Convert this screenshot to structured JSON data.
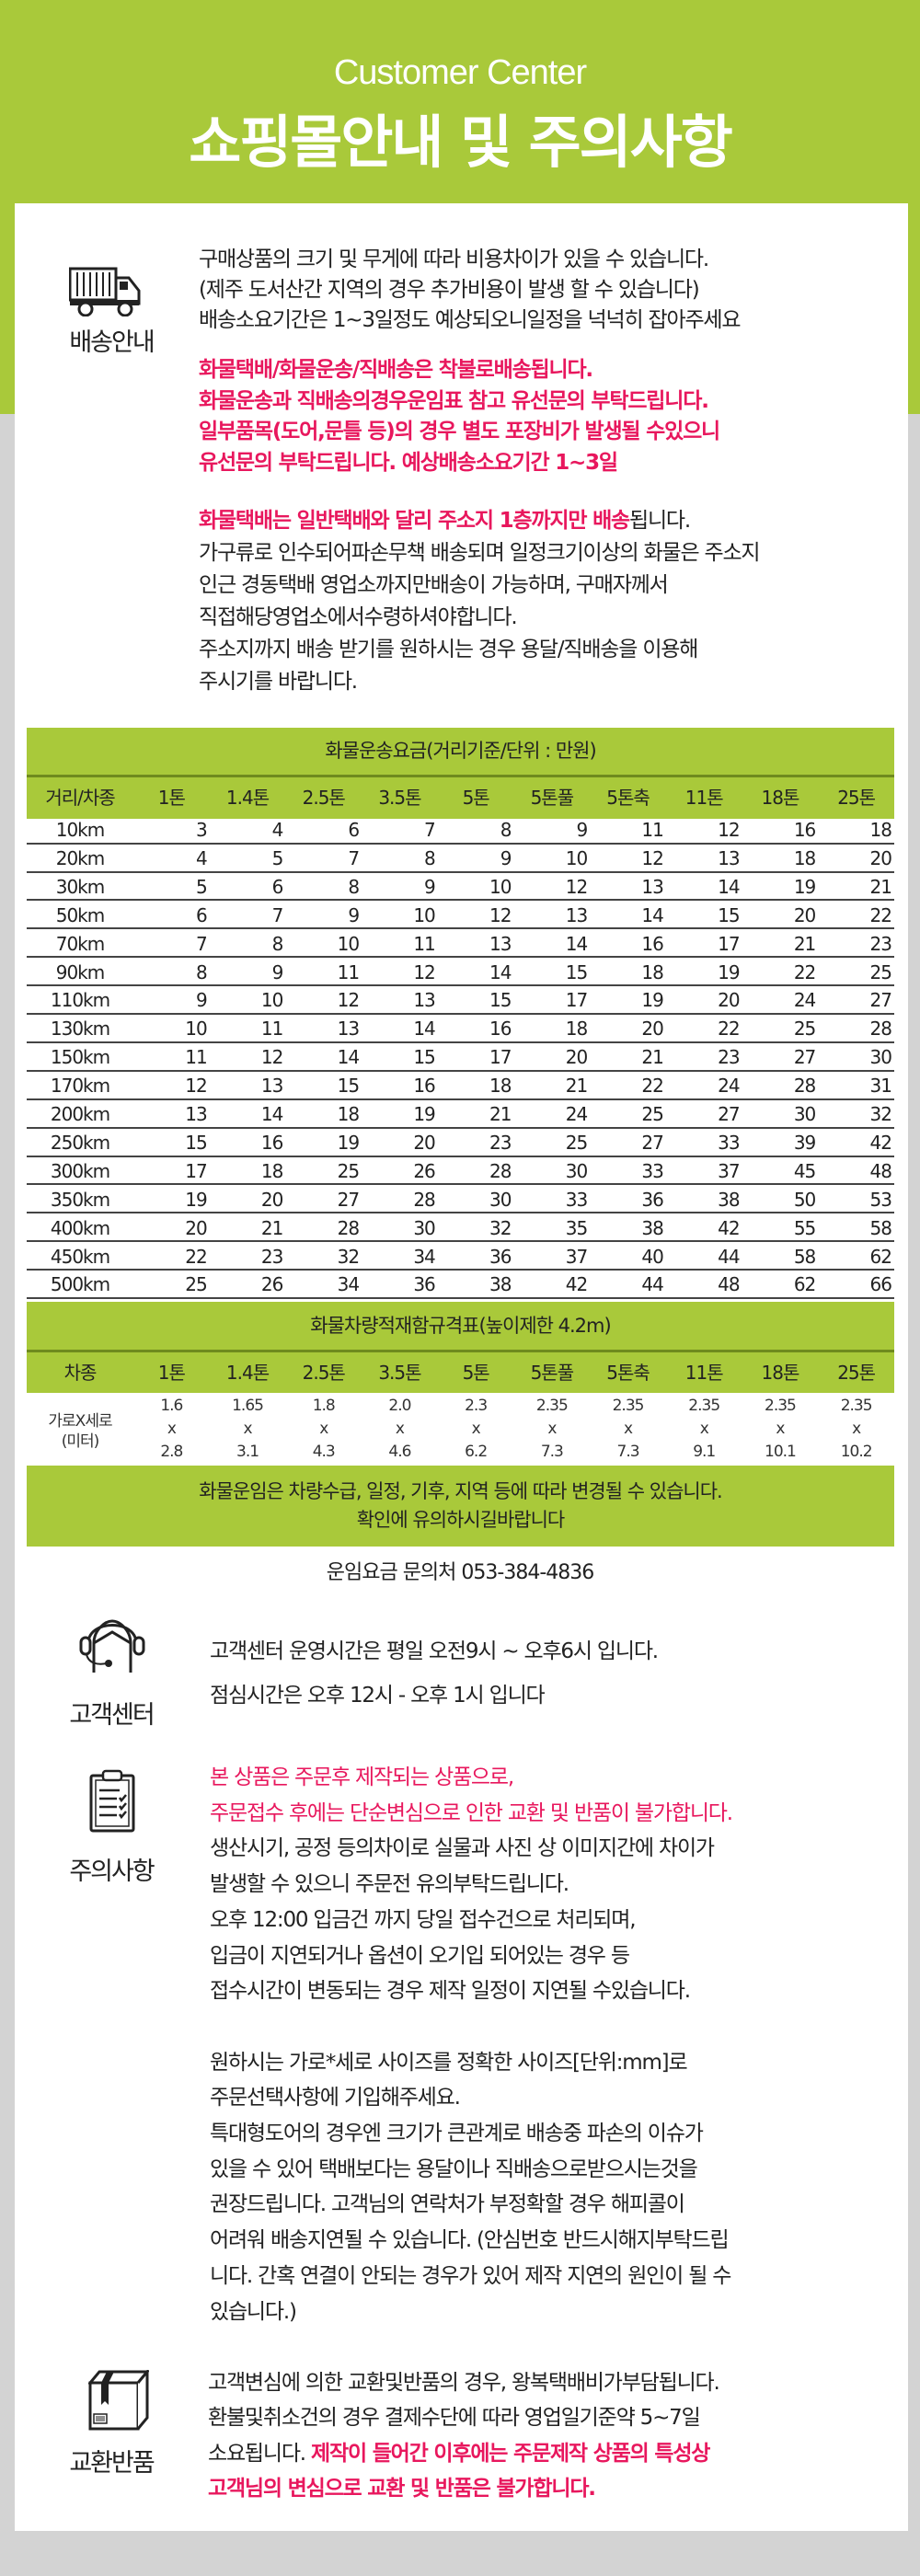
{
  "header": {
    "subtitle": "Customer Center",
    "title": "쇼핑몰안내 및 주의사항"
  },
  "colors": {
    "accent_green": "#a9c93a",
    "warning_red": "#e8175d",
    "page_grey": "#d3d3d3"
  },
  "shipping": {
    "icon": "truck-icon",
    "label": "배송안내",
    "lines": [
      "구매상품의 크기 및 무게에 따라 비용차이가 있을 수 있습니다.",
      "(제주 도서산간 지역의 경우 추가비용이 발생 할 수 있습니다)",
      "배송소요기간은 1~3일정도 예상되오니일정을 넉넉히 잡아주세요"
    ],
    "red_lines": [
      "화물택배/화물운송/직배송은 착불로배송됩니다.",
      "화물운송과 직배송의경우운임표 참고 유선문의 부탁드립니다.",
      "일부품목(도어,문틀 등)의 경우 별도 포장비가 발생될 수있으니",
      "유선문의 부탁드립니다. 예상배송소요기간 1~3일"
    ],
    "freight_red": "화물택배는 일반택배와 달리 주소지 1층까지만 배송",
    "freight_black": "됩니다.",
    "freight_lines": [
      "가구류로 인수되어파손무책 배송되며 일정크기이상의 화물은 주소지",
      "인근 경동택배 영업소까지만배송이 가능하며, 구매자께서",
      "직접해당영업소에서수령하셔야합니다.",
      "주소지까지 배송 받기를 원하시는 경우 용달/직배송을 이용해",
      "주시기를 바랍니다."
    ]
  },
  "rate_table": {
    "title": "화물운송요금(거리기준/단위 : 만원)",
    "corner": "거리/차종",
    "columns": [
      "1톤",
      "1.4톤",
      "2.5톤",
      "3.5톤",
      "5톤",
      "5톤풀",
      "5톤축",
      "11톤",
      "18톤",
      "25톤"
    ],
    "rows": [
      {
        "distance": "10km",
        "values": [
          3,
          4,
          6,
          7,
          8,
          9,
          11,
          12,
          16,
          18
        ]
      },
      {
        "distance": "20km",
        "values": [
          4,
          5,
          7,
          8,
          9,
          10,
          12,
          13,
          18,
          20
        ]
      },
      {
        "distance": "30km",
        "values": [
          5,
          6,
          8,
          9,
          10,
          12,
          13,
          14,
          19,
          21
        ]
      },
      {
        "distance": "50km",
        "values": [
          6,
          7,
          9,
          10,
          12,
          13,
          14,
          15,
          20,
          22
        ]
      },
      {
        "distance": "70km",
        "values": [
          7,
          8,
          10,
          11,
          13,
          14,
          16,
          17,
          21,
          23
        ]
      },
      {
        "distance": "90km",
        "values": [
          8,
          9,
          11,
          12,
          14,
          15,
          18,
          19,
          22,
          25
        ]
      },
      {
        "distance": "110km",
        "values": [
          9,
          10,
          12,
          13,
          15,
          17,
          19,
          20,
          24,
          27
        ]
      },
      {
        "distance": "130km",
        "values": [
          10,
          11,
          13,
          14,
          16,
          18,
          20,
          22,
          25,
          28
        ]
      },
      {
        "distance": "150km",
        "values": [
          11,
          12,
          14,
          15,
          17,
          20,
          21,
          23,
          27,
          30
        ]
      },
      {
        "distance": "170km",
        "values": [
          12,
          13,
          15,
          16,
          18,
          21,
          22,
          24,
          28,
          31
        ]
      },
      {
        "distance": "200km",
        "values": [
          13,
          14,
          18,
          19,
          21,
          24,
          25,
          27,
          30,
          32
        ]
      },
      {
        "distance": "250km",
        "values": [
          15,
          16,
          19,
          20,
          23,
          25,
          27,
          33,
          39,
          42
        ]
      },
      {
        "distance": "300km",
        "values": [
          17,
          18,
          25,
          26,
          28,
          30,
          33,
          37,
          45,
          48
        ]
      },
      {
        "distance": "350km",
        "values": [
          19,
          20,
          27,
          28,
          30,
          33,
          36,
          38,
          50,
          53
        ]
      },
      {
        "distance": "400km",
        "values": [
          20,
          21,
          28,
          30,
          32,
          35,
          38,
          42,
          55,
          58
        ]
      },
      {
        "distance": "450km",
        "values": [
          22,
          23,
          32,
          34,
          36,
          37,
          40,
          44,
          58,
          62
        ]
      },
      {
        "distance": "500km",
        "values": [
          25,
          26,
          34,
          36,
          38,
          42,
          44,
          48,
          62,
          66
        ]
      }
    ]
  },
  "size_table": {
    "title": "화물차량적재함규격표(높이제한 4.2m)",
    "corner": "차종",
    "columns": [
      "1톤",
      "1.4톤",
      "2.5톤",
      "3.5톤",
      "5톤",
      "5톤풀",
      "5톤축",
      "11톤",
      "18톤",
      "25톤"
    ],
    "row_label_1": "가로X세로",
    "row_label_2": "(미터)",
    "separator": "x",
    "widths": [
      "1.6",
      "1.65",
      "1.8",
      "2.0",
      "2.3",
      "2.35",
      "2.35",
      "2.35",
      "2.35",
      "2.35"
    ],
    "lengths": [
      "2.8",
      "3.1",
      "4.3",
      "4.6",
      "6.2",
      "7.3",
      "7.3",
      "9.1",
      "10.1",
      "10.2"
    ],
    "note_1": "화물운임은 차량수급, 일정, 기후, 지역 등에 따라 변경될 수 있습니다.",
    "note_2": "확인에 유의하시길바랍니다"
  },
  "contact": {
    "phone_line": "운임요금 문의처 053-384-4836"
  },
  "customer_center": {
    "icon": "headset-icon",
    "label": "고객센터",
    "lines": [
      "고객센터 운영시간은 평일 오전9시 ~ 오후6시 입니다.",
      "점심시간은  오후 12시 - 오후 1시 입니다"
    ]
  },
  "caution": {
    "icon": "clipboard-icon",
    "label": "주의사항",
    "red_lines": [
      "본 상품은 주문후 제작되는 상품으로,",
      "주문접수 후에는 단순변심으로 인한 교환 및 반품이 불가합니다."
    ],
    "lines": [
      "생산시기, 공정 등의차이로 실물과 사진 상 이미지간에 차이가",
      "발생할 수 있으니 주문전 유의부탁드립니다.",
      "오후 12:00 입금건 까지 당일 접수건으로 처리되며,",
      "입금이 지연되거나 옵션이 오기입 되어있는 경우 등",
      "접수시간이 변동되는 경우 제작 일정이 지연될 수있습니다."
    ],
    "lines_2": [
      "원하시는 가로*세로 사이즈를 정확한 사이즈[단위:mm]로",
      "주문선택사항에 기입해주세요.",
      "특대형도어의 경우엔 크기가 큰관계로 배송중 파손의 이슈가",
      "있을 수 있어 택배보다는 용달이나 직배송으로받으시는것을",
      "권장드립니다. 고객님의 연락처가 부정확할 경우 해피콜이",
      "어려워 배송지연될 수 있습니다. (안심번호 반드시해지부탁드립",
      "니다.  간혹 연결이 안되는 경우가 있어 제작 지연의 원인이 될 수",
      "있습니다.)"
    ]
  },
  "exchange": {
    "icon": "package-box-icon",
    "label": "교환반품",
    "lines": [
      "고객변심에 의한 교환및반품의 경우, 왕복택배비가부담됩니다.",
      "환불및취소건의 경우 결제수단에 따라 영업일기준약 5~7일"
    ],
    "line_3_black": "소요됩니다. ",
    "line_3_red": "제작이 들어간 이후에는 주문제작 상품의 특성상",
    "line_4_red": "고객님의 변심으로 교환 및 반품은 불가합니다."
  }
}
